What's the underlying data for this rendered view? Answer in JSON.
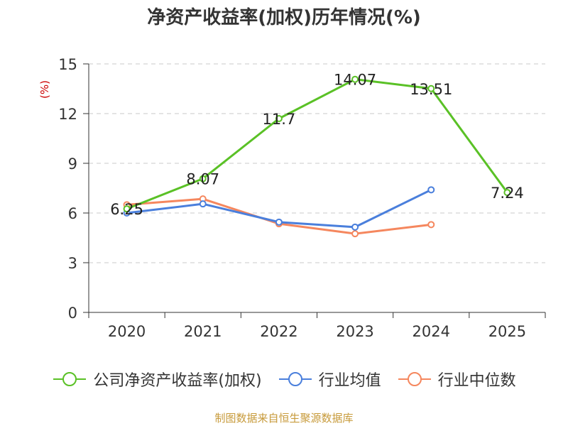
{
  "title": "净资产收益率(加权)历年情况(%)",
  "source": "制图数据来自恒生聚源数据库",
  "colors": {
    "company": "#5ac126",
    "industry_avg": "#4a7fdc",
    "industry_median": "#f5875e",
    "ylabel": "#cc0000",
    "grid": "#c8c8c8",
    "axis": "#333333"
  },
  "chart_data": {
    "type": "line",
    "title": "净资产收益率(加权)历年情况(%)",
    "ylabel": "(%)",
    "xlabel": "",
    "categories": [
      "2020",
      "2021",
      "2022",
      "2023",
      "2024",
      "2025"
    ],
    "ylim": [
      0,
      15
    ],
    "yticks": [
      0,
      3,
      6,
      9,
      12,
      15
    ],
    "yticks_labels": [
      "0",
      "3",
      "6",
      "9",
      "12",
      "15"
    ],
    "grid": true,
    "legend": "bottom",
    "series": [
      {
        "name": "公司净资产收益率(加权)",
        "key": "company",
        "values": [
          6.25,
          8.07,
          11.7,
          14.07,
          13.51,
          7.24
        ],
        "labels": [
          "6.25",
          "8.07",
          "11.7",
          "14.07",
          "13.51",
          "7.24"
        ]
      },
      {
        "name": "行业均值",
        "key": "industry_avg",
        "values": [
          6.0,
          6.55,
          5.45,
          5.15,
          7.4,
          null
        ]
      },
      {
        "name": "行业中位数",
        "key": "industry_median",
        "values": [
          6.5,
          6.85,
          5.35,
          4.75,
          5.3,
          null
        ]
      }
    ]
  }
}
